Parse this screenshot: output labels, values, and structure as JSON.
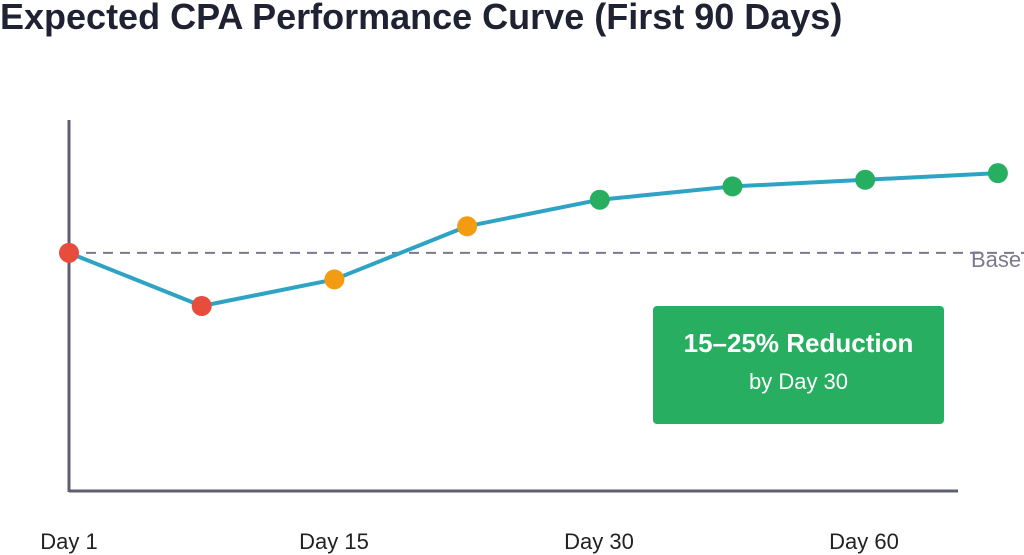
{
  "chart_data": {
    "type": "line",
    "title": "Expected CPA Performance Curve (First 90 Days)",
    "x_tick_labels": [
      "Day 1",
      "Day 15",
      "Day 30",
      "Day 60"
    ],
    "series": [
      {
        "color": "#2ea3c4",
        "values": [
          0,
          -20,
          -10,
          10,
          20,
          25,
          27.5,
          30
        ],
        "point_colors": [
          "#e74c3c",
          "#e74c3c",
          "#f39c12",
          "#f39c12",
          "#27ae60",
          "#27ae60",
          "#27ae60",
          "#27ae60"
        ]
      }
    ],
    "baseline": {
      "value": 0,
      "label": "Base",
      "color": "#7a7a8c",
      "style": "dashed"
    },
    "ylim": [
      -90,
      50
    ],
    "grid": false,
    "legend": "none",
    "annotations": [
      {
        "title": "15–25% Reduction",
        "subtitle": "by Day 30",
        "color": "#27ae60"
      }
    ]
  }
}
